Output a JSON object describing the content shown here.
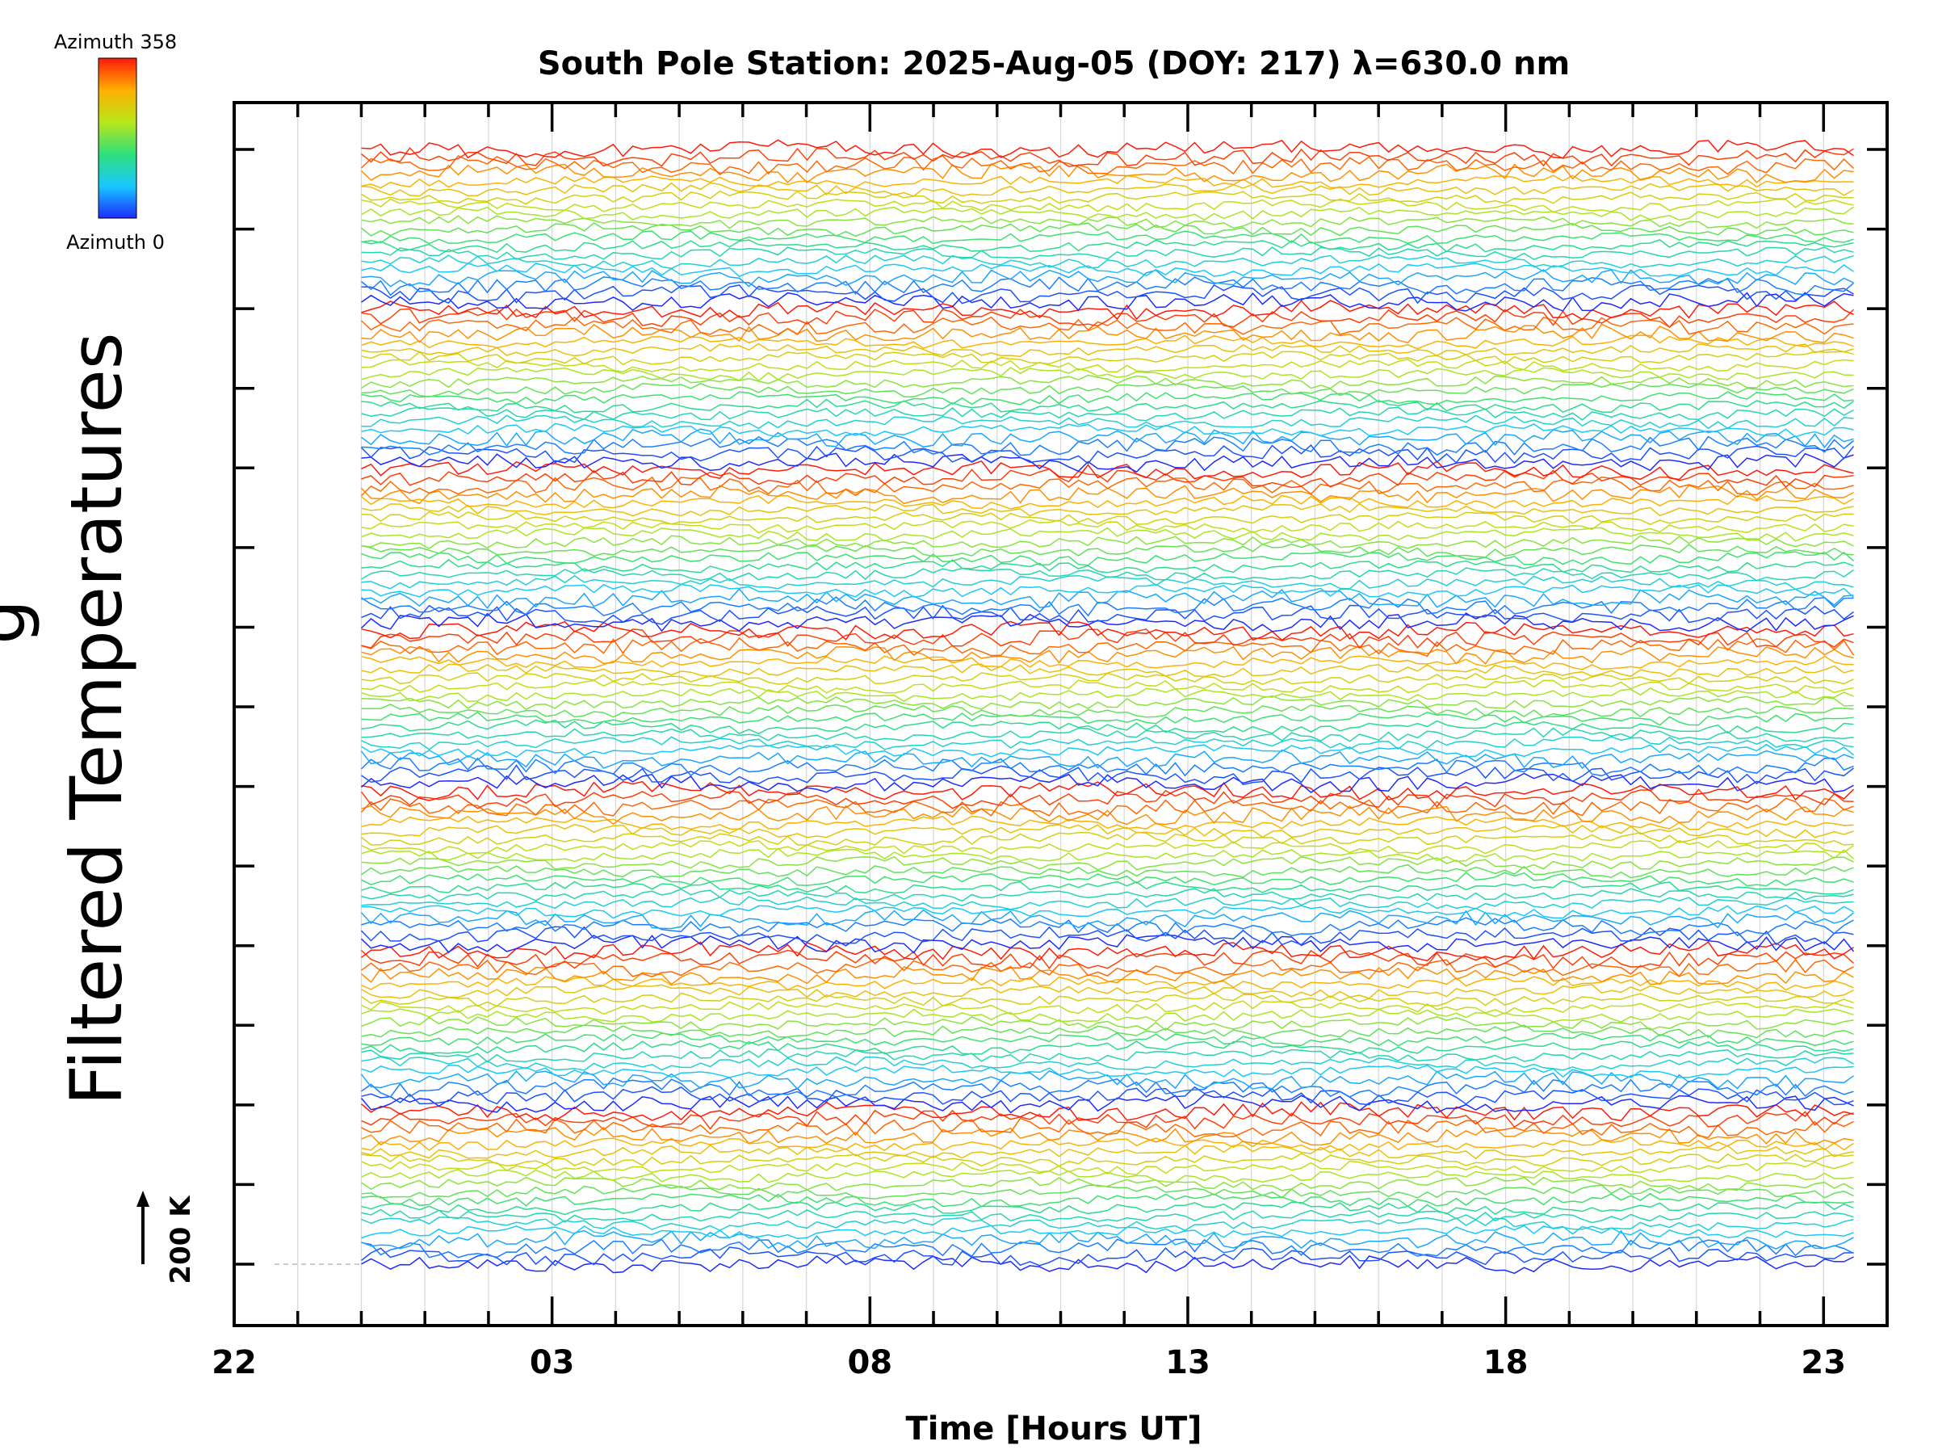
{
  "chart_data": {
    "type": "line",
    "title": "South Pole Station: 2025-Aug-05 (DOY: 217) λ=630.0 nm",
    "xlabel": "Time [Hours UT]",
    "ylabel": "Filtered Temperatures",
    "ylabel_cut": "g",
    "x_tick_labels": [
      "22",
      "03",
      "08",
      "13",
      "18",
      "23"
    ],
    "x_range_hours_from_22UT": [
      0,
      26
    ],
    "data_range_hours_from_22UT": [
      2,
      25.6
    ],
    "scale_bar_label": "200 K",
    "colorbar": {
      "top_label": "Azimuth 358",
      "bottom_label": "Azimuth 0",
      "colormap": "rainbow"
    },
    "grid": "vertical lines every hour",
    "traces_per_cycle": 20,
    "cycles": 7,
    "series_note": "stacked filtered temperature traces colored by azimuth, 0 (blue) to 358 (red), repeating",
    "colors": {
      "axes": "#000000",
      "grid": "#d9d9d9",
      "baseline": "#bbbbbb"
    }
  }
}
